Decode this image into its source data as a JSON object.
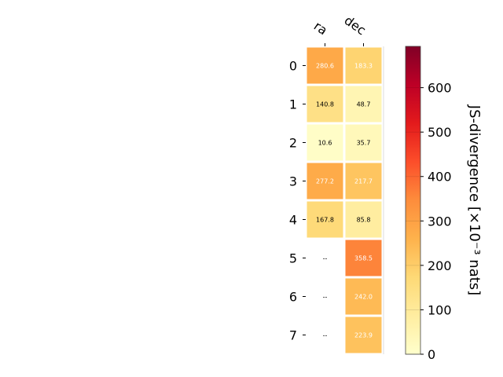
{
  "chart_data": {
    "type": "heatmap",
    "columns": [
      "ra",
      "dec"
    ],
    "rows": [
      "0",
      "1",
      "2",
      "3",
      "4",
      "5",
      "6",
      "7"
    ],
    "values": [
      [
        280.6,
        183.3
      ],
      [
        140.8,
        48.7
      ],
      [
        10.6,
        35.7
      ],
      [
        277.2,
        217.7
      ],
      [
        167.8,
        85.8
      ],
      [
        null,
        358.5
      ],
      [
        null,
        242.0
      ],
      [
        null,
        223.9
      ]
    ],
    "cell_labels": [
      [
        "280.6",
        "183.3"
      ],
      [
        "140.8",
        "48.7"
      ],
      [
        "10.6",
        "35.7"
      ],
      [
        "277.2",
        "217.7"
      ],
      [
        "167.8",
        "85.8"
      ],
      [
        "--",
        "358.5"
      ],
      [
        "--",
        "242.0"
      ],
      [
        "--",
        "223.9"
      ]
    ],
    "colorbar": {
      "label": "JS-divergence [×10⁻³ nats]",
      "range": [
        0,
        693
      ],
      "ticks": [
        "0",
        "100",
        "200",
        "300",
        "400",
        "500",
        "600"
      ],
      "colormap": "YlOrRd"
    }
  }
}
